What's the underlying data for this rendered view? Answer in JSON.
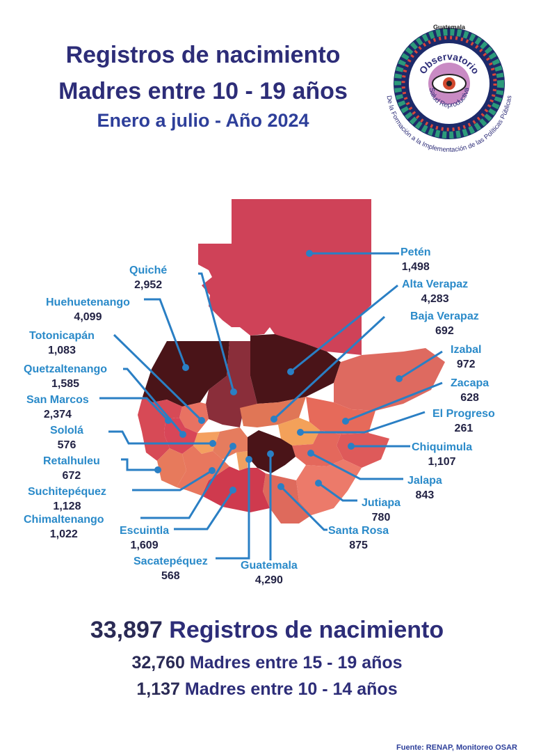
{
  "header": {
    "line1": "Registros de nacimiento",
    "line2": "Madres entre 10 - 19 años",
    "line3": "Enero a julio - Año 2024"
  },
  "logo": {
    "top_text": "Guatemala",
    "arc_text": "Observatorio",
    "inner_text": "Salud Reproductiva",
    "outer_text": "De la Formación a la Implementación de las Políticas Públicas"
  },
  "departments": [
    {
      "name": "Petén",
      "value": "1,498"
    },
    {
      "name": "Alta Verapaz",
      "value": "4,283"
    },
    {
      "name": "Baja Verapaz",
      "value": "692"
    },
    {
      "name": "Izabal",
      "value": "972"
    },
    {
      "name": "Zacapa",
      "value": "628"
    },
    {
      "name": "El Progreso",
      "value": "261"
    },
    {
      "name": "Chiquimula",
      "value": "1,107"
    },
    {
      "name": "Jalapa",
      "value": "843"
    },
    {
      "name": "Jutiapa",
      "value": "780"
    },
    {
      "name": "Santa Rosa",
      "value": "875"
    },
    {
      "name": "Guatemala",
      "value": "4,290"
    },
    {
      "name": "Sacatepéquez",
      "value": "568"
    },
    {
      "name": "Escuintla",
      "value": "1,609"
    },
    {
      "name": "Chimaltenango",
      "value": "1,022"
    },
    {
      "name": "Suchitepéquez",
      "value": "1,128"
    },
    {
      "name": "Retalhuleu",
      "value": "672"
    },
    {
      "name": "Sololá",
      "value": "576"
    },
    {
      "name": "San Marcos",
      "value": "2,374"
    },
    {
      "name": "Quetzaltenango",
      "value": "1,585"
    },
    {
      "name": "Totonicapán",
      "value": "1,083"
    },
    {
      "name": "Huehuetenango",
      "value": "4,099"
    },
    {
      "name": "Quiché",
      "value": "2,952"
    }
  ],
  "totals": {
    "total_value": "33,897",
    "total_label": "Registros de nacimiento",
    "age15_value": "32,760",
    "age15_label": "Madres entre 15 - 19 años",
    "age10_value": "1,137",
    "age10_label": "Madres entre 10 - 14 años"
  },
  "source": "Fuente: RENAP, Monitoreo OSAR",
  "colors": {
    "dark": "#4a1418",
    "maroon": "#6e2630",
    "red": "#cf4258",
    "salmon": "#de6a60",
    "orange": "#f3a15a",
    "leader": "#2a7fc4",
    "title": "#2d2d78"
  }
}
